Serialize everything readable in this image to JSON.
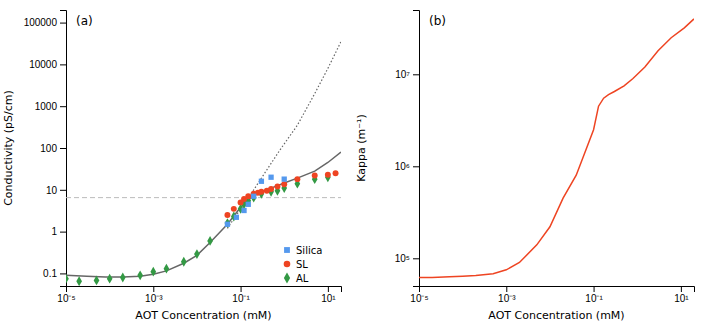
{
  "chart_data": [
    {
      "type": "scatter",
      "title": "(a)",
      "xlabel": "AOT Concentration (mM)",
      "ylabel": "Conductivity (pS/cm)",
      "log": true,
      "xlim": [
        1e-05,
        20
      ],
      "ylim": [
        0.05,
        200000
      ],
      "xticks": [
        {
          "value": 1e-05,
          "label": "10⁻⁵"
        },
        {
          "value": 0.001,
          "label": "10⁻³"
        },
        {
          "value": 0.1,
          "label": "10⁻¹"
        },
        {
          "value": 10,
          "label": "10¹"
        }
      ],
      "yticks": [
        0.1,
        1,
        10,
        100,
        1000,
        10000,
        100000
      ],
      "legend": "lower right",
      "series": [
        {
          "type": "line",
          "color": "#666666",
          "line_style": "solid",
          "x": [
            1e-05,
            3e-05,
            8e-05,
            0.0002,
            0.0005,
            0.001,
            0.002,
            0.005,
            0.01,
            0.02,
            0.05,
            0.1,
            0.2,
            0.5,
            1.0,
            2.0,
            5.0,
            10.0,
            20.0
          ],
          "values": [
            0.09,
            0.085,
            0.082,
            0.082,
            0.086,
            0.095,
            0.115,
            0.175,
            0.27,
            0.55,
            1.5,
            3.8,
            7.5,
            11.0,
            14.5,
            19.0,
            28.0,
            45.0,
            80.0
          ]
        },
        {
          "type": "line",
          "color": "#666666",
          "line_style": "dotted",
          "x": [
            0.05,
            0.1,
            0.2,
            0.4,
            0.8,
            2.0,
            5.0,
            10.0,
            20.0
          ],
          "values": [
            1.2,
            3.5,
            10.0,
            30.0,
            90.0,
            350.0,
            2000.0,
            8000.0,
            35000.0
          ]
        },
        {
          "type": "hline",
          "color": "#bbbbbb",
          "line_style": "dashed",
          "values": [
            6.5
          ]
        },
        {
          "type": "scatter",
          "name": "Silica",
          "color": "#5599ee",
          "marker": "square",
          "x": [
            0.05,
            0.08,
            0.12,
            0.15,
            0.2,
            0.3,
            0.5,
            1.0
          ],
          "values": [
            1.5,
            2.2,
            3.2,
            4.5,
            7.0,
            16.0,
            20.0,
            18.0
          ]
        },
        {
          "type": "scatter",
          "name": "SL",
          "color": "#ee4422",
          "marker": "circle",
          "x": [
            0.05,
            0.07,
            0.1,
            0.12,
            0.15,
            0.2,
            0.25,
            0.3,
            0.4,
            0.5,
            0.7,
            1.0,
            2.0,
            5.0,
            10.0,
            15.0
          ],
          "values": [
            2.5,
            3.5,
            5.0,
            6.0,
            7.0,
            8.0,
            8.5,
            9.0,
            9.5,
            10.5,
            12.0,
            13.5,
            18.0,
            22.0,
            23.0,
            25.0
          ]
        },
        {
          "type": "scatter",
          "name": "AL",
          "color": "#339944",
          "marker": "diamond",
          "x": [
            1e-05,
            2e-05,
            5e-05,
            0.0001,
            0.0002,
            0.0005,
            0.001,
            0.002,
            0.005,
            0.01,
            0.02,
            0.05,
            0.07,
            0.1,
            0.12,
            0.15,
            0.2,
            0.3,
            0.5,
            0.7,
            1.0,
            2.0,
            5.0,
            10.0
          ],
          "values": [
            0.075,
            0.065,
            0.068,
            0.075,
            0.08,
            0.09,
            0.11,
            0.13,
            0.19,
            0.29,
            0.6,
            1.6,
            2.3,
            3.5,
            4.5,
            5.5,
            6.5,
            8.0,
            9.0,
            9.5,
            11.0,
            14.0,
            18.0,
            20.0
          ]
        }
      ]
    },
    {
      "type": "line",
      "title": "(b)",
      "xlabel": "AOT Concentration (mM)",
      "ylabel": "Kappa (m⁻¹)",
      "log": true,
      "xlim": [
        1e-05,
        20
      ],
      "ylim": [
        50000.0,
        50000000.0
      ],
      "xticks": [
        {
          "value": 1e-05,
          "label": "10⁻⁵"
        },
        {
          "value": 0.001,
          "label": "10⁻³"
        },
        {
          "value": 0.1,
          "label": "10⁻¹"
        },
        {
          "value": 10,
          "label": "10¹"
        }
      ],
      "yticks": [
        {
          "value": 100000.0,
          "label": "10⁵"
        },
        {
          "value": 1000000.0,
          "label": "10⁶"
        },
        {
          "value": 10000000.0,
          "label": "10⁷"
        }
      ],
      "series": [
        {
          "type": "line",
          "color": "#ee4422",
          "line_style": "solid",
          "x": [
            1e-05,
            2e-05,
            5e-05,
            0.0001,
            0.0002,
            0.0005,
            0.001,
            0.002,
            0.005,
            0.01,
            0.02,
            0.04,
            0.07,
            0.1,
            0.13,
            0.17,
            0.22,
            0.3,
            0.5,
            0.8,
            1.5,
            3.0,
            6.0,
            12.0,
            20.0
          ],
          "values": [
            62000.0,
            62000.0,
            63000.0,
            64000.0,
            65000.0,
            68000.0,
            75000.0,
            90000.0,
            140000.0,
            220000.0,
            450000.0,
            800000.0,
            1600000.0,
            2500000.0,
            4500000.0,
            5500000.0,
            6000000.0,
            6500000.0,
            7500000.0,
            9000000.0,
            12000000.0,
            18000000.0,
            25000000.0,
            32000000.0,
            40000000.0
          ]
        }
      ]
    }
  ]
}
